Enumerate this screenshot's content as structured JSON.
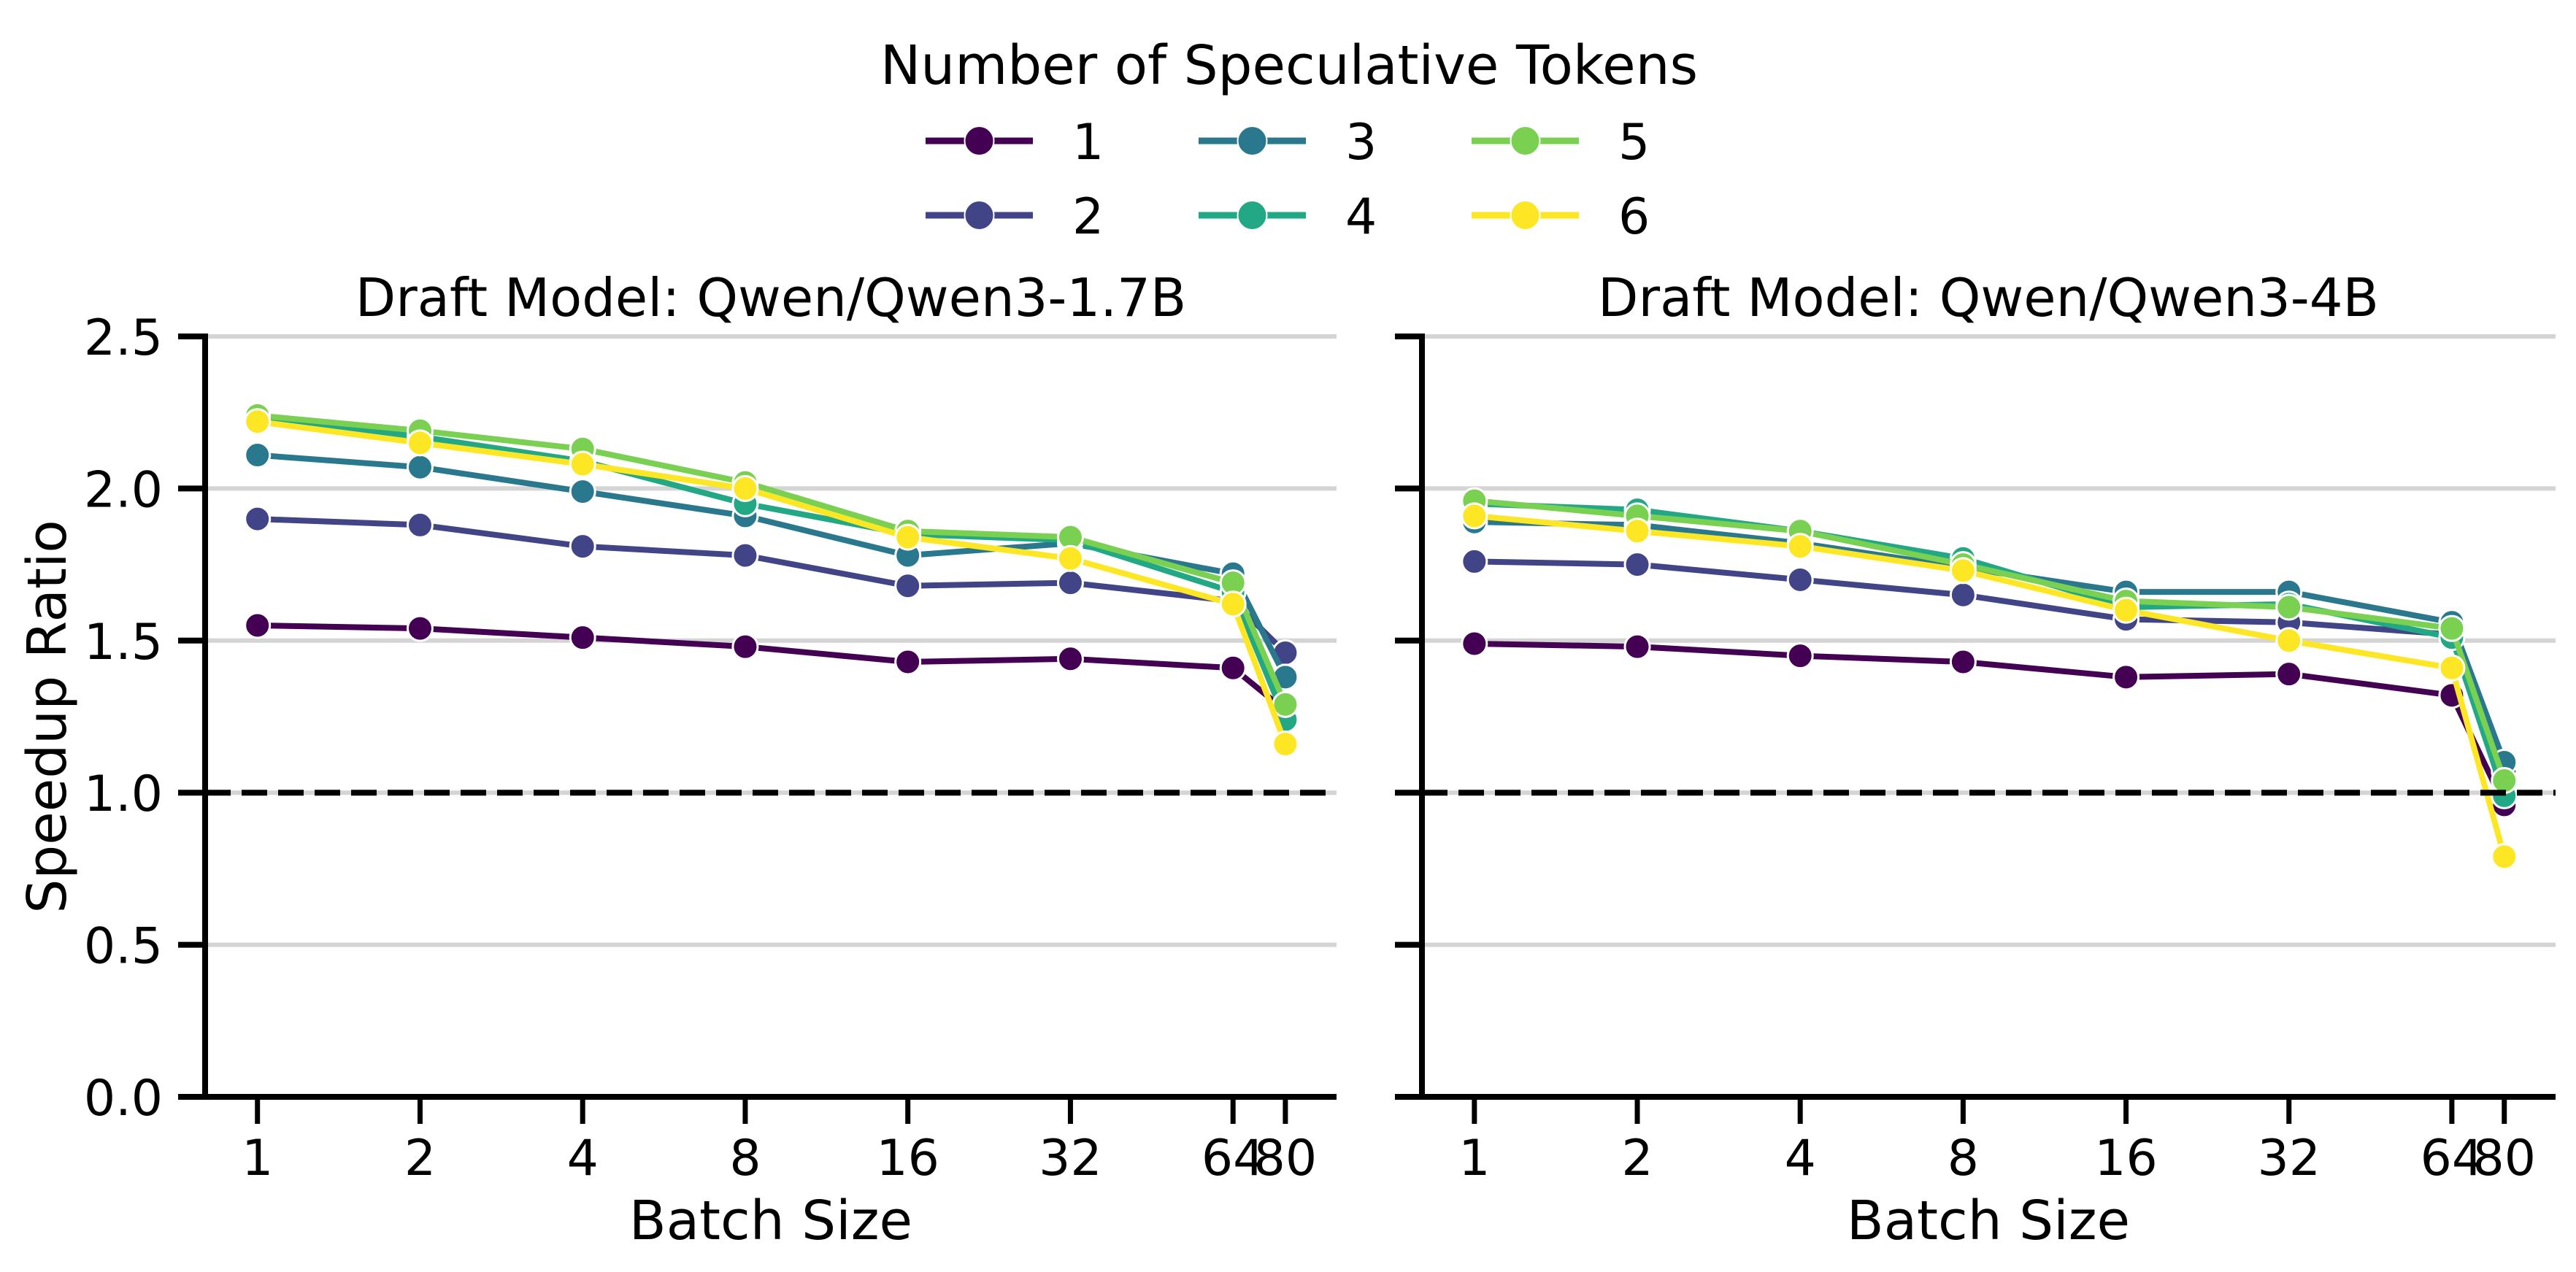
{
  "legend": {
    "title": "Number of Speculative Tokens",
    "position": "top-center",
    "entries": [
      {
        "label": "1",
        "color": "#440154"
      },
      {
        "label": "2",
        "color": "#414487"
      },
      {
        "label": "3",
        "color": "#2a788e"
      },
      {
        "label": "4",
        "color": "#22a884"
      },
      {
        "label": "5",
        "color": "#7ad151"
      },
      {
        "label": "6",
        "color": "#fde725"
      }
    ]
  },
  "chart_data": [
    {
      "type": "line",
      "title": "Draft Model: Qwen/Qwen3-1.7B",
      "xlabel": "Batch Size",
      "ylabel": "Speedup Ratio",
      "xscale": "log2",
      "x": [
        1,
        2,
        4,
        8,
        16,
        32,
        64,
        80
      ],
      "xticklabels": [
        "1",
        "2",
        "4",
        "8",
        "16",
        "32",
        "64",
        "80"
      ],
      "xlim": [
        0.8,
        99.5
      ],
      "ylim": [
        0,
        2.5
      ],
      "yticks": [
        0,
        0.5,
        1.0,
        1.5,
        2.0,
        2.5
      ],
      "yticklabels": [
        "0.0",
        "0.5",
        "1.0",
        "1.5",
        "2.0",
        "2.5"
      ],
      "grid": "y",
      "reference_line": {
        "y": 1.0,
        "color": "#000000"
      },
      "series": [
        {
          "name": "1",
          "color": "#440154",
          "values": [
            1.55,
            1.54,
            1.51,
            1.48,
            1.43,
            1.44,
            1.41,
            1.27
          ]
        },
        {
          "name": "2",
          "color": "#414487",
          "values": [
            1.9,
            1.88,
            1.81,
            1.78,
            1.68,
            1.69,
            1.63,
            1.46
          ]
        },
        {
          "name": "3",
          "color": "#2a788e",
          "values": [
            2.11,
            2.07,
            1.99,
            1.91,
            1.78,
            1.82,
            1.72,
            1.38
          ]
        },
        {
          "name": "4",
          "color": "#22a884",
          "values": [
            2.23,
            2.17,
            2.09,
            1.95,
            1.85,
            1.83,
            1.66,
            1.24
          ]
        },
        {
          "name": "5",
          "color": "#7ad151",
          "values": [
            2.24,
            2.19,
            2.13,
            2.02,
            1.86,
            1.84,
            1.69,
            1.29
          ]
        },
        {
          "name": "6",
          "color": "#fde725",
          "values": [
            2.22,
            2.15,
            2.08,
            2.0,
            1.84,
            1.77,
            1.62,
            1.16
          ]
        }
      ]
    },
    {
      "type": "line",
      "title": "Draft Model: Qwen/Qwen3-4B",
      "xlabel": "Batch Size",
      "ylabel": "",
      "xscale": "log2",
      "x": [
        1,
        2,
        4,
        8,
        16,
        32,
        64,
        80
      ],
      "xticklabels": [
        "1",
        "2",
        "4",
        "8",
        "16",
        "32",
        "64",
        "80"
      ],
      "xlim": [
        0.8,
        99.5
      ],
      "ylim": [
        0,
        2.5
      ],
      "yticks": [
        0,
        0.5,
        1.0,
        1.5,
        2.0,
        2.5
      ],
      "yticklabels": [],
      "grid": "y",
      "reference_line": {
        "y": 1.0,
        "color": "#000000"
      },
      "series": [
        {
          "name": "1",
          "color": "#440154",
          "values": [
            1.49,
            1.48,
            1.45,
            1.43,
            1.38,
            1.39,
            1.32,
            0.96
          ]
        },
        {
          "name": "2",
          "color": "#414487",
          "values": [
            1.76,
            1.75,
            1.7,
            1.65,
            1.57,
            1.56,
            1.52,
            1.07
          ]
        },
        {
          "name": "3",
          "color": "#2a788e",
          "values": [
            1.89,
            1.88,
            1.82,
            1.74,
            1.66,
            1.66,
            1.56,
            1.1
          ]
        },
        {
          "name": "4",
          "color": "#22a884",
          "values": [
            1.95,
            1.93,
            1.86,
            1.77,
            1.61,
            1.62,
            1.51,
            0.99
          ]
        },
        {
          "name": "5",
          "color": "#7ad151",
          "values": [
            1.96,
            1.91,
            1.86,
            1.75,
            1.63,
            1.61,
            1.54,
            1.04
          ]
        },
        {
          "name": "6",
          "color": "#fde725",
          "values": [
            1.91,
            1.86,
            1.81,
            1.73,
            1.6,
            1.5,
            1.41,
            0.79
          ]
        }
      ]
    }
  ]
}
